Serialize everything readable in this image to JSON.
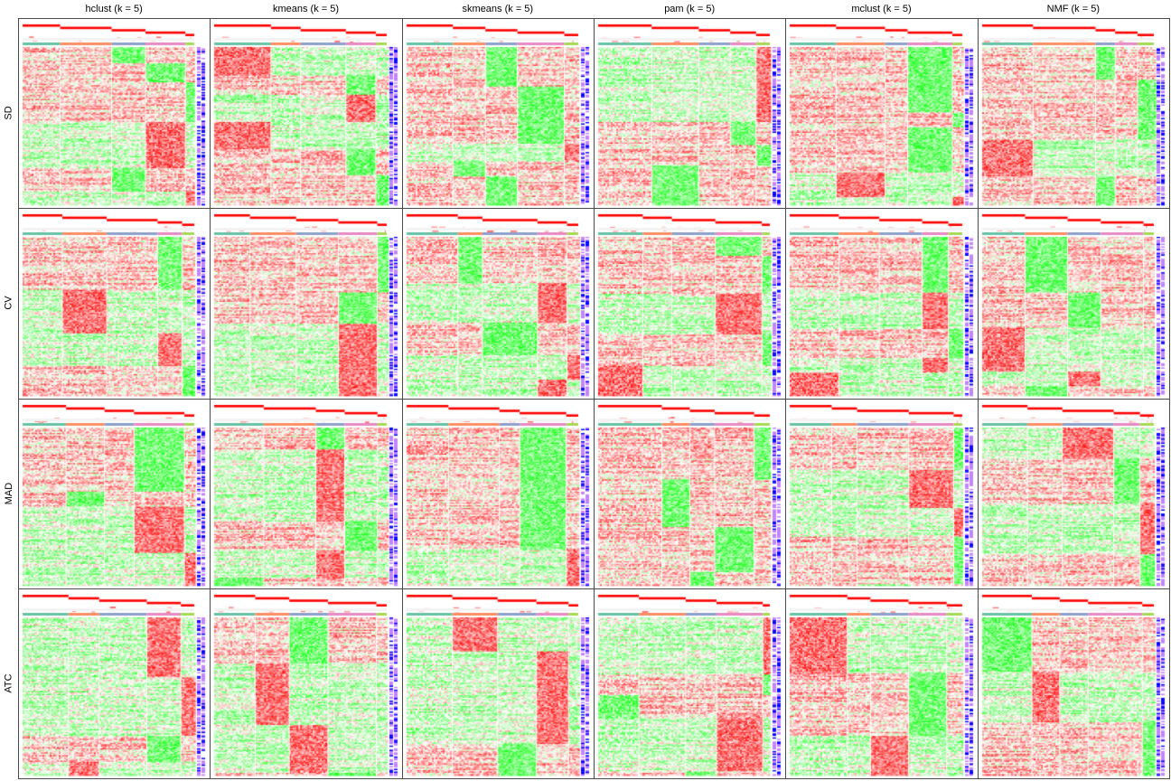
{
  "chart_data": {
    "type": "heatmap",
    "title": "",
    "col_titles": [
      "hclust (k = 5)",
      "kmeans (k = 5)",
      "skmeans (k = 5)",
      "pam (k = 5)",
      "mclust (k = 5)",
      "NMF (k = 5)"
    ],
    "row_titles": [
      "SD",
      "CV",
      "MAD",
      "ATC"
    ],
    "k": 5,
    "color_scale": {
      "low": "#00FF00",
      "mid": "#FFFFFF",
      "high": "#FF0000"
    },
    "class_colors": [
      "#66C2A5",
      "#FC8D62",
      "#8DA0CB",
      "#E78AC3",
      "#A6D854"
    ],
    "annotation_colors": {
      "prob_high": "#FF0000",
      "prob_low": "#FFFFFF",
      "side_high": "#0000FF",
      "side_mid": "#C080FF",
      "side_low": "#FFFFFF"
    },
    "grid": false,
    "legend": "none"
  }
}
